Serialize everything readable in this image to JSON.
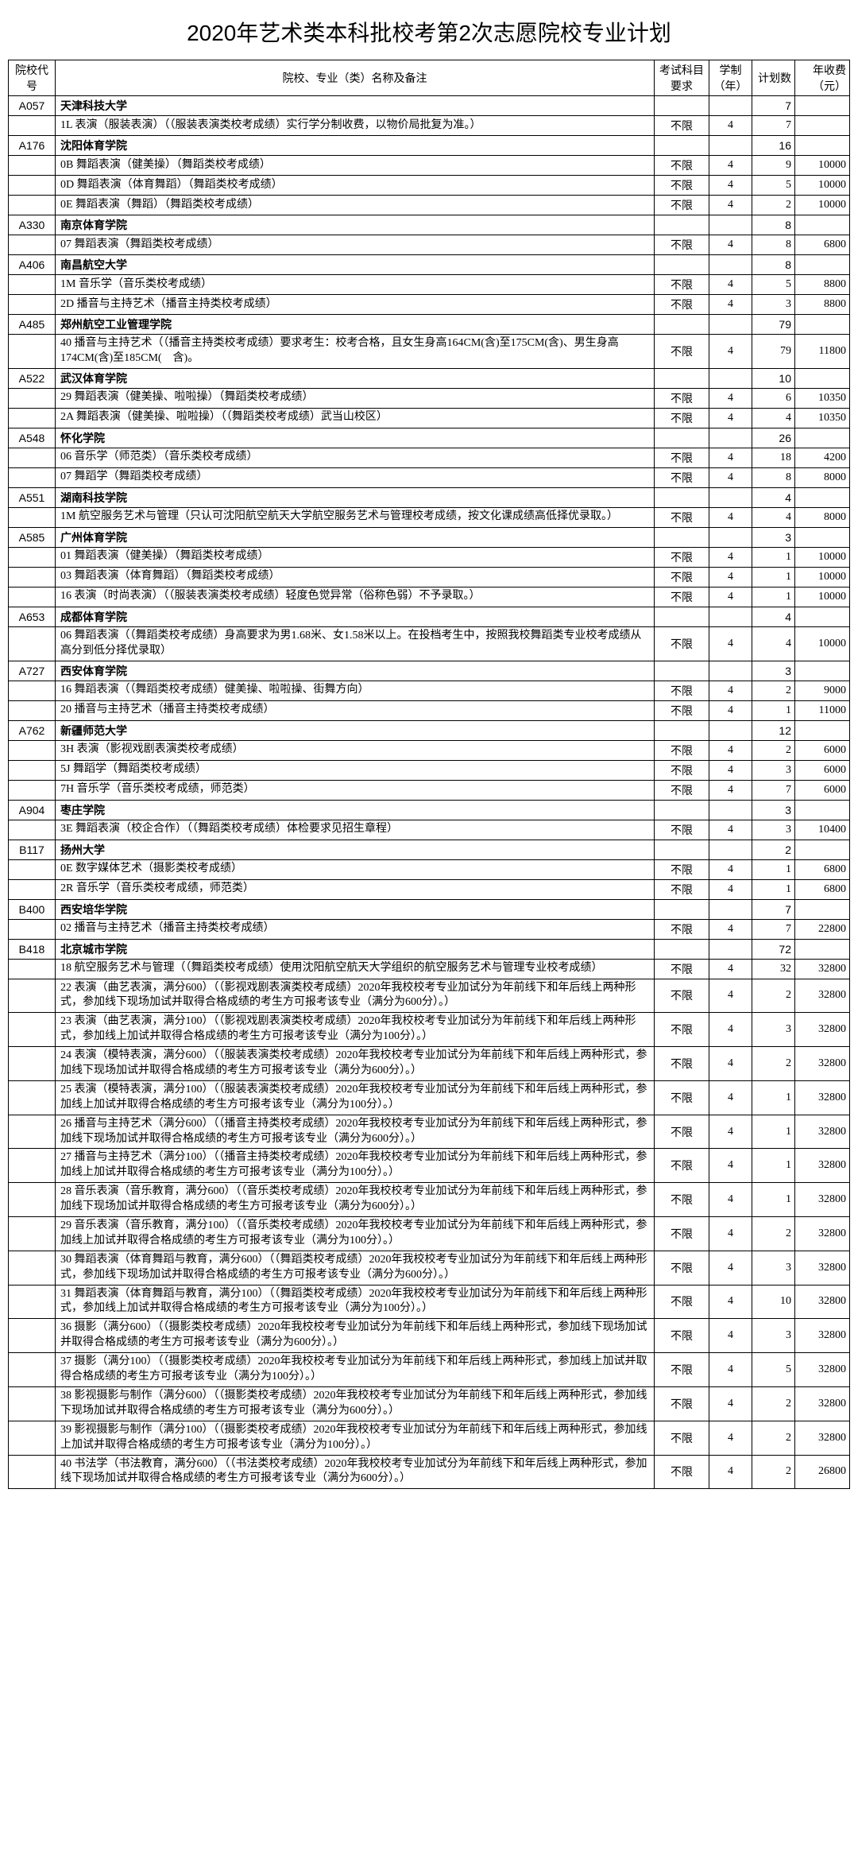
{
  "title": "2020年艺术类本科批校考第2次志愿院校专业计划",
  "headers": {
    "code": "院校代号",
    "name": "院校、专业（类）名称及备注",
    "exam": "考试科目要求",
    "years": "学制（年）",
    "plan": "计划数",
    "fee": "年收费（元）"
  },
  "rows": [
    {
      "t": "s",
      "code": "A057",
      "name": "天津科技大学",
      "plan": "7"
    },
    {
      "t": "m",
      "name": "1L 表演（服装表演）（（服装表演类校考成绩）实行学分制收费，以物价局批复为准。）",
      "exam": "不限",
      "years": "4",
      "plan": "7",
      "fee": ""
    },
    {
      "t": "s",
      "code": "A176",
      "name": "沈阳体育学院",
      "plan": "16"
    },
    {
      "t": "m",
      "name": "0B 舞蹈表演（健美操）（舞蹈类校考成绩）",
      "exam": "不限",
      "years": "4",
      "plan": "9",
      "fee": "10000"
    },
    {
      "t": "m",
      "name": "0D 舞蹈表演（体育舞蹈）（舞蹈类校考成绩）",
      "exam": "不限",
      "years": "4",
      "plan": "5",
      "fee": "10000"
    },
    {
      "t": "m",
      "name": "0E 舞蹈表演（舞蹈）（舞蹈类校考成绩）",
      "exam": "不限",
      "years": "4",
      "plan": "2",
      "fee": "10000"
    },
    {
      "t": "s",
      "code": "A330",
      "name": "南京体育学院",
      "plan": "8"
    },
    {
      "t": "m",
      "name": "07 舞蹈表演（舞蹈类校考成绩）",
      "exam": "不限",
      "years": "4",
      "plan": "8",
      "fee": "6800"
    },
    {
      "t": "s",
      "code": "A406",
      "name": "南昌航空大学",
      "plan": "8"
    },
    {
      "t": "m",
      "name": "1M 音乐学（音乐类校考成绩）",
      "exam": "不限",
      "years": "4",
      "plan": "5",
      "fee": "8800"
    },
    {
      "t": "m",
      "name": "2D 播音与主持艺术（播音主持类校考成绩）",
      "exam": "不限",
      "years": "4",
      "plan": "3",
      "fee": "8800"
    },
    {
      "t": "s",
      "code": "A485",
      "name": "郑州航空工业管理学院",
      "plan": "79"
    },
    {
      "t": "m",
      "name": "40 播音与主持艺术（（播音主持类校考成绩）要求考生：校考合格，且女生身高164CM(含)至175CM(含)、男生身高174CM(含)至185CM(　含)。",
      "exam": "不限",
      "years": "4",
      "plan": "79",
      "fee": "11800"
    },
    {
      "t": "s",
      "code": "A522",
      "name": "武汉体育学院",
      "plan": "10"
    },
    {
      "t": "m",
      "name": "29 舞蹈表演（健美操、啦啦操）（舞蹈类校考成绩）",
      "exam": "不限",
      "years": "4",
      "plan": "6",
      "fee": "10350"
    },
    {
      "t": "m",
      "name": "2A 舞蹈表演（健美操、啦啦操）（（舞蹈类校考成绩）武当山校区）",
      "exam": "不限",
      "years": "4",
      "plan": "4",
      "fee": "10350"
    },
    {
      "t": "s",
      "code": "A548",
      "name": "怀化学院",
      "plan": "26"
    },
    {
      "t": "m",
      "name": "06 音乐学（师范类）（音乐类校考成绩）",
      "exam": "不限",
      "years": "4",
      "plan": "18",
      "fee": "4200"
    },
    {
      "t": "m",
      "name": "07 舞蹈学（舞蹈类校考成绩）",
      "exam": "不限",
      "years": "4",
      "plan": "8",
      "fee": "8000"
    },
    {
      "t": "s",
      "code": "A551",
      "name": "湖南科技学院",
      "plan": "4"
    },
    {
      "t": "m",
      "name": "1M 航空服务艺术与管理（只认可沈阳航空航天大学航空服务艺术与管理校考成绩，按文化课成绩高低择优录取。）",
      "exam": "不限",
      "years": "4",
      "plan": "4",
      "fee": "8000"
    },
    {
      "t": "s",
      "code": "A585",
      "name": "广州体育学院",
      "plan": "3"
    },
    {
      "t": "m",
      "name": "01 舞蹈表演（健美操）（舞蹈类校考成绩）",
      "exam": "不限",
      "years": "4",
      "plan": "1",
      "fee": "10000"
    },
    {
      "t": "m",
      "name": "03 舞蹈表演（体育舞蹈）（舞蹈类校考成绩）",
      "exam": "不限",
      "years": "4",
      "plan": "1",
      "fee": "10000"
    },
    {
      "t": "m",
      "name": "16 表演（时尚表演）（（服装表演类校考成绩）轻度色觉异常（俗称色弱）不予录取。）",
      "exam": "不限",
      "years": "4",
      "plan": "1",
      "fee": "10000"
    },
    {
      "t": "s",
      "code": "A653",
      "name": "成都体育学院",
      "plan": "4"
    },
    {
      "t": "m",
      "name": "06 舞蹈表演（（舞蹈类校考成绩）身高要求为男1.68米、女1.58米以上。在投档考生中，按照我校舞蹈类专业校考成绩从高分到低分择优录取）",
      "exam": "不限",
      "years": "4",
      "plan": "4",
      "fee": "10000"
    },
    {
      "t": "s",
      "code": "A727",
      "name": "西安体育学院",
      "plan": "3"
    },
    {
      "t": "m",
      "name": "16 舞蹈表演（（舞蹈类校考成绩）健美操、啦啦操、街舞方向）",
      "exam": "不限",
      "years": "4",
      "plan": "2",
      "fee": "9000"
    },
    {
      "t": "m",
      "name": "20 播音与主持艺术（播音主持类校考成绩）",
      "exam": "不限",
      "years": "4",
      "plan": "1",
      "fee": "11000"
    },
    {
      "t": "s",
      "code": "A762",
      "name": "新疆师范大学",
      "plan": "12"
    },
    {
      "t": "m",
      "name": "3H 表演（影视戏剧表演类校考成绩）",
      "exam": "不限",
      "years": "4",
      "plan": "2",
      "fee": "6000"
    },
    {
      "t": "m",
      "name": "5J 舞蹈学（舞蹈类校考成绩）",
      "exam": "不限",
      "years": "4",
      "plan": "3",
      "fee": "6000"
    },
    {
      "t": "m",
      "name": "7H 音乐学（音乐类校考成绩，师范类）",
      "exam": "不限",
      "years": "4",
      "plan": "7",
      "fee": "6000"
    },
    {
      "t": "s",
      "code": "A904",
      "name": "枣庄学院",
      "plan": "3"
    },
    {
      "t": "m",
      "name": "3E 舞蹈表演（校企合作）（（舞蹈类校考成绩）体检要求见招生章程）",
      "exam": "不限",
      "years": "4",
      "plan": "3",
      "fee": "10400"
    },
    {
      "t": "s",
      "code": "B117",
      "name": "扬州大学",
      "plan": "2"
    },
    {
      "t": "m",
      "name": "0E 数字媒体艺术（摄影类校考成绩）",
      "exam": "不限",
      "years": "4",
      "plan": "1",
      "fee": "6800"
    },
    {
      "t": "m",
      "name": "2R 音乐学（音乐类校考成绩，师范类）",
      "exam": "不限",
      "years": "4",
      "plan": "1",
      "fee": "6800"
    },
    {
      "t": "s",
      "code": "B400",
      "name": "西安培华学院",
      "plan": "7"
    },
    {
      "t": "m",
      "name": "02 播音与主持艺术（播音主持类校考成绩）",
      "exam": "不限",
      "years": "4",
      "plan": "7",
      "fee": "22800"
    },
    {
      "t": "s",
      "code": "B418",
      "name": "北京城市学院",
      "plan": "72"
    },
    {
      "t": "m",
      "name": "18 航空服务艺术与管理（（舞蹈类校考成绩）使用沈阳航空航天大学组织的航空服务艺术与管理专业校考成绩）",
      "exam": "不限",
      "years": "4",
      "plan": "32",
      "fee": "32800"
    },
    {
      "t": "m",
      "name": "22 表演（曲艺表演，满分600）（（影视戏剧表演类校考成绩）2020年我校校考专业加试分为年前线下和年后线上两种形式，参加线下现场加试并取得合格成绩的考生方可报考该专业（满分为600分）。）",
      "exam": "不限",
      "years": "4",
      "plan": "2",
      "fee": "32800"
    },
    {
      "t": "m",
      "name": "23 表演（曲艺表演，满分100）（（影视戏剧表演类校考成绩）2020年我校校考专业加试分为年前线下和年后线上两种形式，参加线上加试并取得合格成绩的考生方可报考该专业（满分为100分）。）",
      "exam": "不限",
      "years": "4",
      "plan": "3",
      "fee": "32800"
    },
    {
      "t": "m",
      "name": "24 表演（模特表演，满分600）（（服装表演类校考成绩）2020年我校校考专业加试分为年前线下和年后线上两种形式，参加线下现场加试并取得合格成绩的考生方可报考该专业（满分为600分）。）",
      "exam": "不限",
      "years": "4",
      "plan": "2",
      "fee": "32800"
    },
    {
      "t": "m",
      "name": "25 表演（模特表演，满分100）（（服装表演类校考成绩）2020年我校校考专业加试分为年前线下和年后线上两种形式，参加线上加试并取得合格成绩的考生方可报考该专业（满分为100分）。）",
      "exam": "不限",
      "years": "4",
      "plan": "1",
      "fee": "32800"
    },
    {
      "t": "m",
      "name": "26 播音与主持艺术（满分600）（（播音主持类校考成绩）2020年我校校考专业加试分为年前线下和年后线上两种形式，参加线下现场加试并取得合格成绩的考生方可报考该专业（满分为600分）。）",
      "exam": "不限",
      "years": "4",
      "plan": "1",
      "fee": "32800"
    },
    {
      "t": "m",
      "name": "27 播音与主持艺术（满分100）（（播音主持类校考成绩）2020年我校校考专业加试分为年前线下和年后线上两种形式，参加线上加试并取得合格成绩的考生方可报考该专业（满分为100分）。）",
      "exam": "不限",
      "years": "4",
      "plan": "1",
      "fee": "32800"
    },
    {
      "t": "m",
      "name": "28 音乐表演（音乐教育，满分600）（（音乐类校考成绩）2020年我校校考专业加试分为年前线下和年后线上两种形式，参加线下现场加试并取得合格成绩的考生方可报考该专业（满分为600分）。）",
      "exam": "不限",
      "years": "4",
      "plan": "1",
      "fee": "32800"
    },
    {
      "t": "m",
      "name": "29 音乐表演（音乐教育，满分100）（（音乐类校考成绩）2020年我校校考专业加试分为年前线下和年后线上两种形式，参加线上加试并取得合格成绩的考生方可报考该专业（满分为100分）。）",
      "exam": "不限",
      "years": "4",
      "plan": "2",
      "fee": "32800"
    },
    {
      "t": "m",
      "name": "30 舞蹈表演（体育舞蹈与教育，满分600）（（舞蹈类校考成绩）2020年我校校考专业加试分为年前线下和年后线上两种形式，参加线下现场加试并取得合格成绩的考生方可报考该专业（满分为600分）。）",
      "exam": "不限",
      "years": "4",
      "plan": "3",
      "fee": "32800"
    },
    {
      "t": "m",
      "name": "31 舞蹈表演（体育舞蹈与教育，满分100）（（舞蹈类校考成绩）2020年我校校考专业加试分为年前线下和年后线上两种形式，参加线上加试并取得合格成绩的考生方可报考该专业（满分为100分）。）",
      "exam": "不限",
      "years": "4",
      "plan": "10",
      "fee": "32800"
    },
    {
      "t": "m",
      "name": "36 摄影（满分600）（（摄影类校考成绩）2020年我校校考专业加试分为年前线下和年后线上两种形式，参加线下现场加试并取得合格成绩的考生方可报考该专业（满分为600分）。）",
      "exam": "不限",
      "years": "4",
      "plan": "3",
      "fee": "32800"
    },
    {
      "t": "m",
      "name": "37 摄影（满分100）（（摄影类校考成绩）2020年我校校考专业加试分为年前线下和年后线上两种形式，参加线上加试并取得合格成绩的考生方可报考该专业（满分为100分）。）",
      "exam": "不限",
      "years": "4",
      "plan": "5",
      "fee": "32800"
    },
    {
      "t": "m",
      "name": "38 影视摄影与制作（满分600）（（摄影类校考成绩）2020年我校校考专业加试分为年前线下和年后线上两种形式，参加线下现场加试并取得合格成绩的考生方可报考该专业（满分为600分）。）",
      "exam": "不限",
      "years": "4",
      "plan": "2",
      "fee": "32800"
    },
    {
      "t": "m",
      "name": "39 影视摄影与制作（满分100）（（摄影类校考成绩）2020年我校校考专业加试分为年前线下和年后线上两种形式，参加线上加试并取得合格成绩的考生方可报考该专业（满分为100分）。）",
      "exam": "不限",
      "years": "4",
      "plan": "2",
      "fee": "32800"
    },
    {
      "t": "m",
      "name": "40 书法学（书法教育，满分600）（（书法类校考成绩）2020年我校校考专业加试分为年前线下和年后线上两种形式，参加线下现场加试并取得合格成绩的考生方可报考该专业（满分为600分）。）",
      "exam": "不限",
      "years": "4",
      "plan": "2",
      "fee": "26800"
    }
  ]
}
